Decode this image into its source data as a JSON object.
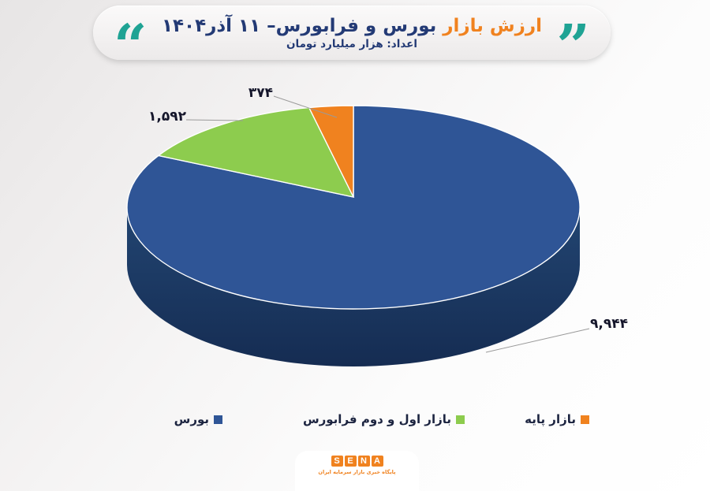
{
  "header": {
    "title_highlight": "ارزش بازار",
    "title_rest": " بورس و فرابورس– ۱۱ آذر۱۴۰۴",
    "subtitle": "اعداد: هزار میلیارد تومان",
    "open_quote": "“",
    "close_quote": "”",
    "quote_color": "#1fa394",
    "highlight_color": "#f0821f",
    "title_color": "#233a75"
  },
  "chart_data": {
    "type": "pie",
    "style": "3d",
    "title": "ارزش بازار بورس و فرابورس– ۱۱ آذر۱۴۰۴",
    "subtitle": "اعداد: هزار میلیارد تومان",
    "unit": "هزار میلیارد تومان",
    "start_angle_deg": 90,
    "direction": "clockwise",
    "legend_position": "bottom",
    "slices": [
      {
        "label": "بورس",
        "value": 9944,
        "display_value": "۹,۹۴۴",
        "color": "#2f5596",
        "side_color": "#1c3863"
      },
      {
        "label": "بازار اول و دوم  فرابورس",
        "value": 1592,
        "display_value": "۱,۵۹۲",
        "color": "#8dcc4e"
      },
      {
        "label": "بازار پایه",
        "value": 374,
        "display_value": "۳۷۴",
        "color": "#f0821f"
      }
    ]
  },
  "footer": {
    "brand": "SENA",
    "letters": [
      "S",
      "E",
      "N",
      "A"
    ],
    "tagline": "پایگاه خبری بازار سرمایه ایران",
    "brand_color": "#f0821f"
  }
}
